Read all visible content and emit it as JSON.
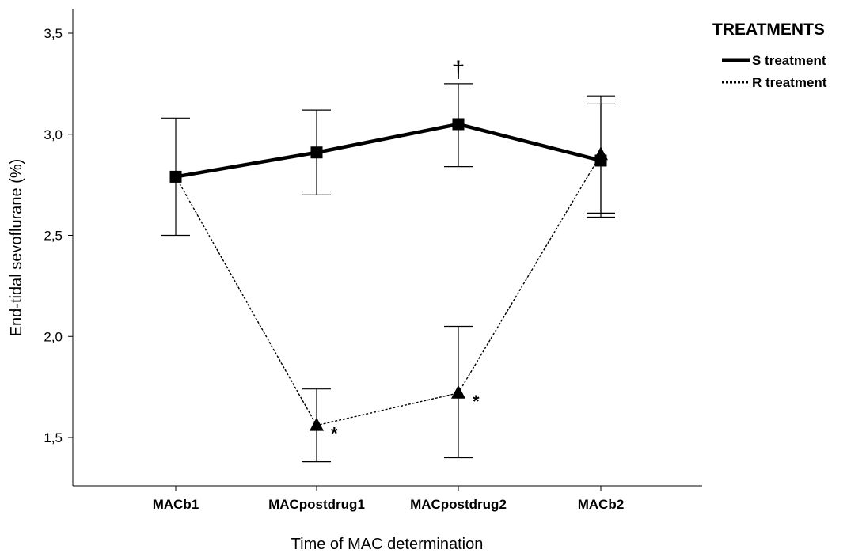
{
  "chart_data": {
    "type": "line",
    "xlabel": "Time of MAC determination",
    "ylabel": "End-tidal sevoflurane (%)",
    "categories": [
      "MACb1",
      "MACpostdrug1",
      "MACpostdrug2",
      "MACb2"
    ],
    "ylim": [
      1.25,
      3.6
    ],
    "yticks": [
      1.5,
      2.0,
      2.5,
      3.0,
      3.5
    ],
    "ytick_labels": [
      "1,5",
      "2,0",
      "2,5",
      "3,0",
      "3,5"
    ],
    "grid": false,
    "legend": {
      "title": "TREATMENTS",
      "placement": "top-right"
    },
    "series": [
      {
        "name": "S treatment",
        "line": "solid",
        "marker": "square",
        "values": [
          2.79,
          2.91,
          3.05,
          2.87
        ],
        "err_low": [
          2.5,
          2.7,
          2.84,
          2.59
        ],
        "err_high": [
          3.08,
          3.12,
          3.25,
          3.15
        ]
      },
      {
        "name": "R treatment",
        "line": "dotted",
        "marker": "triangle",
        "values": [
          2.79,
          1.56,
          1.72,
          2.9
        ],
        "err_low": [
          2.79,
          1.38,
          1.4,
          2.61
        ],
        "err_high": [
          2.79,
          1.74,
          2.05,
          3.19
        ]
      }
    ],
    "annotations": [
      {
        "text": "†",
        "category": "MACpostdrug2",
        "series": "S treatment"
      },
      {
        "text": "*",
        "category": "MACpostdrug1",
        "series": "R treatment"
      },
      {
        "text": "*",
        "category": "MACpostdrug2",
        "series": "R treatment"
      }
    ]
  }
}
